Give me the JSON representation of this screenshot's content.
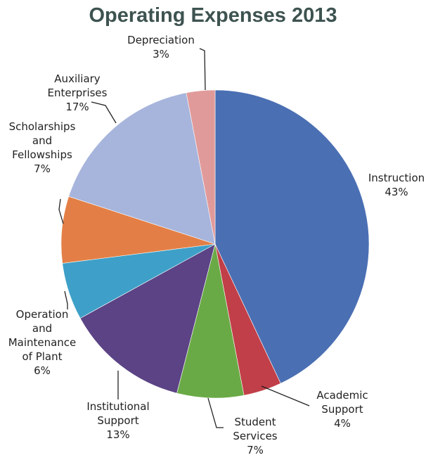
{
  "chart_data": {
    "type": "pie",
    "title": "Operating Expenses 2013",
    "start_angle_deg": 0,
    "direction": "clockwise",
    "slices": [
      {
        "label": "Instruction",
        "value": 43,
        "display": "43%",
        "color": "#4a6fb3",
        "label_lines": [
          "Instruction",
          "43%"
        ]
      },
      {
        "label": "Academic Support",
        "value": 4,
        "display": "4%",
        "color": "#c13f48",
        "label_lines": [
          "Academic",
          "Support",
          "4%"
        ]
      },
      {
        "label": "Student Services",
        "value": 7,
        "display": "7%",
        "color": "#6aaa46",
        "label_lines": [
          "Student",
          "Services",
          "7%"
        ]
      },
      {
        "label": "Institutional Support",
        "value": 13,
        "display": "13%",
        "color": "#5b4385",
        "label_lines": [
          "Institutional",
          "Support",
          "13%"
        ]
      },
      {
        "label": "Operation and Maintenance of Plant",
        "value": 6,
        "display": "6%",
        "color": "#3ea0c8",
        "label_lines": [
          "Operation",
          "and",
          "Maintenance",
          "of Plant",
          "6%"
        ]
      },
      {
        "label": "Scholarships and Fellowships",
        "value": 7,
        "display": "7%",
        "color": "#e37f46",
        "label_lines": [
          "Scholarships",
          "and",
          "Fellowships",
          "7%"
        ]
      },
      {
        "label": "Auxiliary Enterprises",
        "value": 17,
        "display": "17%",
        "color": "#a7b5dc",
        "label_lines": [
          "Auxiliary",
          "Enterprises",
          "17%"
        ]
      },
      {
        "label": "Depreciation",
        "value": 3,
        "display": "3%",
        "color": "#e19a9a",
        "label_lines": [
          "Depreciation",
          "3%"
        ]
      }
    ]
  }
}
